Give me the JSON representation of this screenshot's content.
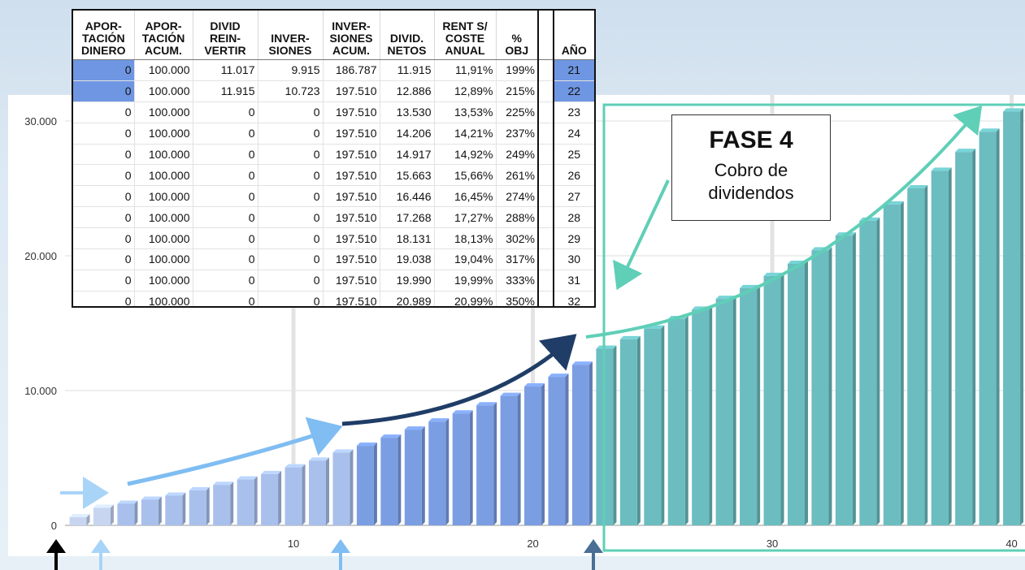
{
  "chart_data": {
    "type": "bar",
    "x": [
      1,
      2,
      3,
      4,
      5,
      6,
      7,
      8,
      9,
      10,
      11,
      12,
      13,
      14,
      15,
      16,
      17,
      18,
      19,
      20,
      21,
      22,
      23,
      24,
      25,
      26,
      27,
      28,
      29,
      30,
      31,
      32,
      33,
      34,
      35,
      36,
      37,
      38,
      39,
      40
    ],
    "values": [
      600,
      1300,
      1600,
      1900,
      2200,
      2600,
      3000,
      3400,
      3800,
      4300,
      4800,
      5400,
      5900,
      6500,
      7100,
      7700,
      8300,
      8900,
      9600,
      10300,
      11017,
      11915,
      13100,
      13800,
      14600,
      15300,
      16000,
      16800,
      17600,
      18500,
      19400,
      20400,
      21500,
      22600,
      23800,
      25000,
      26300,
      27700,
      29200,
      30700
    ],
    "ylim": [
      0,
      32000
    ],
    "yticks": [
      "0",
      "10.000",
      "20.000",
      "30.000"
    ],
    "xticks": [
      "10",
      "20",
      "30",
      "40"
    ],
    "grid": true,
    "colors": {
      "phase1": "#c7d5f1",
      "phase2": "#a9c0ec",
      "phase3": "#7b9ee3",
      "phase4": "#6bbdc0",
      "phase4_accent": "#5fcfb7",
      "arrow_light": "#a8d4f8",
      "arrow_mid": "#7fbdf2",
      "arrow_dark": "#1f3d66",
      "arrow_steel": "#4a6e96"
    }
  },
  "table": {
    "headers": [
      [
        "APOR-",
        "TACIÓN",
        "DINERO"
      ],
      [
        "APOR-",
        "TACIÓN",
        "ACUM."
      ],
      [
        "DIVID",
        "REIN-",
        "VERTIR"
      ],
      [
        "INVER-",
        "SIONES"
      ],
      [
        "INVER-",
        "SIONES",
        "ACUM."
      ],
      [
        "DIVID.",
        "NETOS"
      ],
      [
        "RENT S/",
        "COSTE",
        "ANUAL"
      ],
      [
        "%",
        "OBJ"
      ],
      [
        ""
      ],
      [
        "AÑO"
      ]
    ],
    "rows": [
      [
        "0",
        "100.000",
        "11.017",
        "9.915",
        "186.787",
        "11.915",
        "11,91%",
        "199%",
        "",
        "21"
      ],
      [
        "0",
        "100.000",
        "11.915",
        "10.723",
        "197.510",
        "12.886",
        "12,89%",
        "215%",
        "",
        "22"
      ],
      [
        "0",
        "100.000",
        "0",
        "0",
        "197.510",
        "13.530",
        "13,53%",
        "225%",
        "",
        "23"
      ],
      [
        "0",
        "100.000",
        "0",
        "0",
        "197.510",
        "14.206",
        "14,21%",
        "237%",
        "",
        "24"
      ],
      [
        "0",
        "100.000",
        "0",
        "0",
        "197.510",
        "14.917",
        "14,92%",
        "249%",
        "",
        "25"
      ],
      [
        "0",
        "100.000",
        "0",
        "0",
        "197.510",
        "15.663",
        "15,66%",
        "261%",
        "",
        "26"
      ],
      [
        "0",
        "100.000",
        "0",
        "0",
        "197.510",
        "16.446",
        "16,45%",
        "274%",
        "",
        "27"
      ],
      [
        "0",
        "100.000",
        "0",
        "0",
        "197.510",
        "17.268",
        "17,27%",
        "288%",
        "",
        "28"
      ],
      [
        "0",
        "100.000",
        "0",
        "0",
        "197.510",
        "18.131",
        "18,13%",
        "302%",
        "",
        "29"
      ],
      [
        "0",
        "100.000",
        "0",
        "0",
        "197.510",
        "19.038",
        "19,04%",
        "317%",
        "",
        "30"
      ],
      [
        "0",
        "100.000",
        "0",
        "0",
        "197.510",
        "19.990",
        "19,99%",
        "333%",
        "",
        "31"
      ],
      [
        "0",
        "100.000",
        "0",
        "0",
        "197.510",
        "20.989",
        "20,99%",
        "350%",
        "",
        "32"
      ]
    ],
    "highlight_rows": [
      0,
      1
    ]
  },
  "callout": {
    "title": "FASE 4",
    "subtitle_line1": "Cobro de",
    "subtitle_line2": "dividendos"
  }
}
